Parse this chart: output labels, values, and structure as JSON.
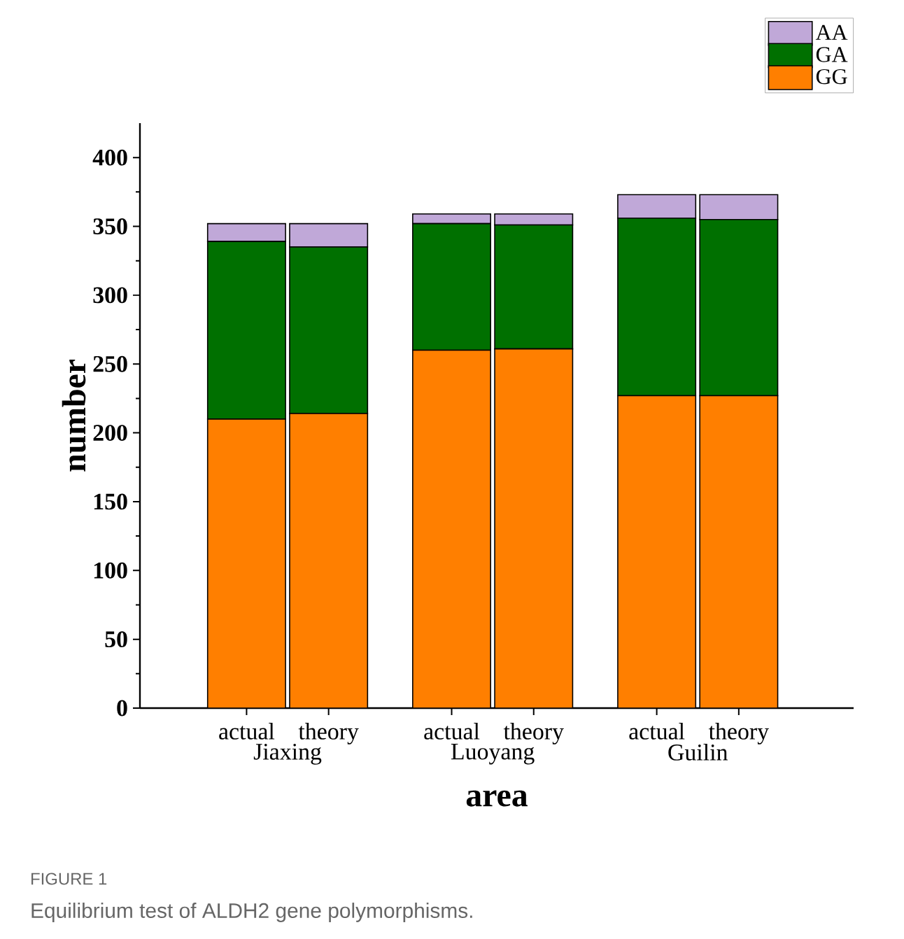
{
  "chart_data": {
    "type": "bar",
    "stacked": true,
    "xlabel": "area",
    "ylabel": "number",
    "categories": [
      "actual",
      "theory",
      "actual",
      "theory",
      "actual",
      "theory"
    ],
    "series": [
      {
        "name": "GG",
        "color": "#ff7f00",
        "values": [
          210,
          214,
          260,
          261,
          227,
          227
        ]
      },
      {
        "name": "GA",
        "color": "#007000",
        "values": [
          129,
          121,
          92,
          90,
          129,
          128
        ]
      },
      {
        "name": "AA",
        "color": "#c0a8d8",
        "values": [
          13,
          17,
          7,
          8,
          17,
          18
        ]
      }
    ],
    "ylim": [
      0,
      425
    ],
    "yticks": [
      0,
      50,
      100,
      150,
      200,
      250,
      300,
      350,
      400
    ],
    "legend": "top right",
    "grid": false,
    "annotations": [
      "Jiaxing",
      "Luoyang",
      "Guilin",
      "FIGURE 1",
      "Equilibrium test of ALDH2 gene polymorphisms."
    ]
  }
}
